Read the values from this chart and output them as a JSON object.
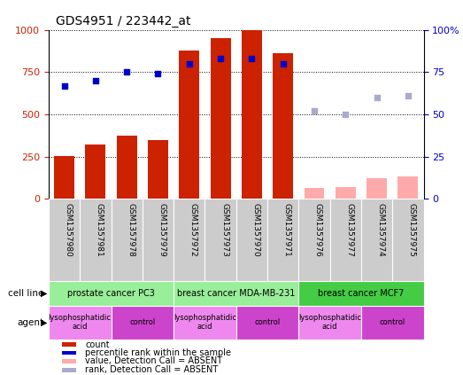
{
  "title": "GDS4951 / 223442_at",
  "samples": [
    "GSM1357980",
    "GSM1357981",
    "GSM1357978",
    "GSM1357979",
    "GSM1357972",
    "GSM1357973",
    "GSM1357970",
    "GSM1357971",
    "GSM1357976",
    "GSM1357977",
    "GSM1357974",
    "GSM1357975"
  ],
  "counts": [
    255,
    320,
    375,
    350,
    880,
    950,
    1000,
    860,
    65,
    70,
    120,
    130
  ],
  "counts_absent": [
    false,
    false,
    false,
    false,
    false,
    false,
    false,
    false,
    true,
    true,
    true,
    true
  ],
  "percentile_ranks": [
    67,
    70,
    75,
    74,
    80,
    83,
    83,
    80,
    52,
    50,
    60,
    61
  ],
  "percentile_absent": [
    false,
    false,
    false,
    false,
    false,
    false,
    false,
    false,
    true,
    true,
    true,
    true
  ],
  "bar_color_present": "#cc2200",
  "bar_color_absent": "#ffaaaa",
  "dot_color_present": "#0000cc",
  "dot_color_absent": "#aaaacc",
  "cell_lines": [
    {
      "label": "prostate cancer PC3",
      "start": 0,
      "end": 4,
      "color": "#99ee99"
    },
    {
      "label": "breast cancer MDA-MB-231",
      "start": 4,
      "end": 8,
      "color": "#99ee99"
    },
    {
      "label": "breast cancer MCF7",
      "start": 8,
      "end": 12,
      "color": "#44cc44"
    }
  ],
  "agents": [
    {
      "label": "lysophosphatidic\nacid",
      "start": 0,
      "end": 2,
      "color": "#ee88ee"
    },
    {
      "label": "control",
      "start": 2,
      "end": 4,
      "color": "#cc44cc"
    },
    {
      "label": "lysophosphatidic\nacid",
      "start": 4,
      "end": 6,
      "color": "#ee88ee"
    },
    {
      "label": "control",
      "start": 6,
      "end": 8,
      "color": "#cc44cc"
    },
    {
      "label": "lysophosphatidic\nacid",
      "start": 8,
      "end": 10,
      "color": "#ee88ee"
    },
    {
      "label": "control",
      "start": 10,
      "end": 12,
      "color": "#cc44cc"
    }
  ],
  "ylim_left": [
    0,
    1000
  ],
  "ylim_right": [
    0,
    100
  ],
  "yticks_left": [
    0,
    250,
    500,
    750,
    1000
  ],
  "yticks_right": [
    0,
    25,
    50,
    75,
    100
  ],
  "ylabel_left_color": "#cc2200",
  "ylabel_right_color": "#0000cc",
  "legend_items": [
    {
      "label": "count",
      "color": "#cc2200"
    },
    {
      "label": "percentile rank within the sample",
      "color": "#0000cc"
    },
    {
      "label": "value, Detection Call = ABSENT",
      "color": "#ffaaaa"
    },
    {
      "label": "rank, Detection Call = ABSENT",
      "color": "#aaaacc"
    }
  ],
  "cell_line_label": "cell line",
  "agent_label": "agent",
  "background_color": "#ffffff",
  "sample_bg_color": "#cccccc"
}
